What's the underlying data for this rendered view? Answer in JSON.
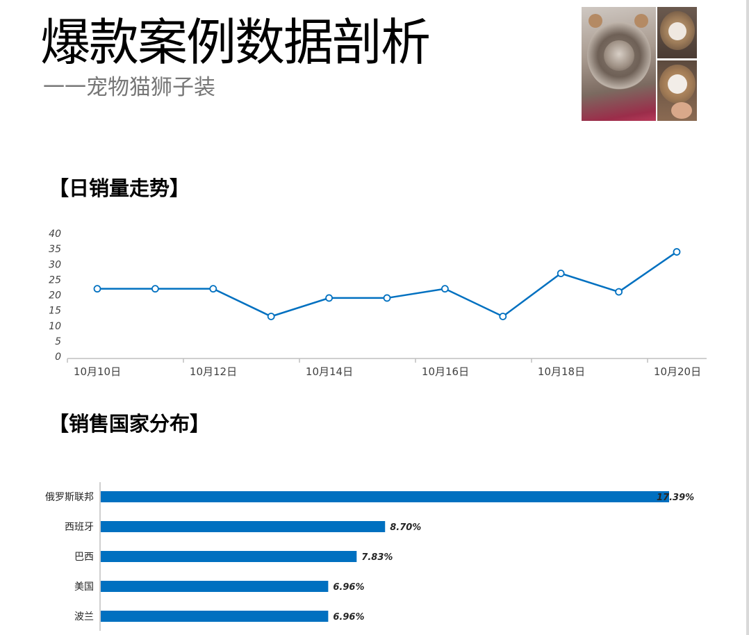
{
  "header": {
    "title": "爆款案例数据剖析",
    "subtitle": "一一宠物猫狮子装"
  },
  "sections": {
    "daily_sales": "【日销量走势】",
    "country_distribution": "【销售国家分布】"
  },
  "colors": {
    "series": "#0070c0",
    "axis": "#bfbfbf",
    "text": "#404040"
  },
  "chart_data": [
    {
      "type": "line",
      "x": [
        "10月10日",
        "10月11日",
        "10月12日",
        "10月13日",
        "10月14日",
        "10月15日",
        "10月16日",
        "10月17日",
        "10月18日",
        "10月19日",
        "10月20日"
      ],
      "x_tick_labels": [
        "10月10日",
        "10月12日",
        "10月14日",
        "10月16日",
        "10月18日",
        "10月20日"
      ],
      "values": [
        22,
        22,
        22,
        13,
        19,
        19,
        22,
        13,
        27,
        21,
        34
      ],
      "ylim": [
        0,
        40
      ],
      "y_ticks": [
        "0",
        "5",
        "10",
        "15",
        "20",
        "25",
        "30",
        "35",
        "40"
      ],
      "grid": false,
      "markers": "hollow-circle"
    },
    {
      "type": "bar",
      "orientation": "horizontal",
      "categories": [
        "俄罗斯联邦",
        "西班牙",
        "巴西",
        "美国",
        "波兰"
      ],
      "values": [
        17.39,
        8.7,
        7.83,
        6.96,
        6.96
      ],
      "data_labels": [
        "17.39%",
        "8.70%",
        "7.83%",
        "6.96%",
        "6.96%"
      ],
      "xlim": [
        0,
        17.39
      ],
      "grid": false
    }
  ]
}
